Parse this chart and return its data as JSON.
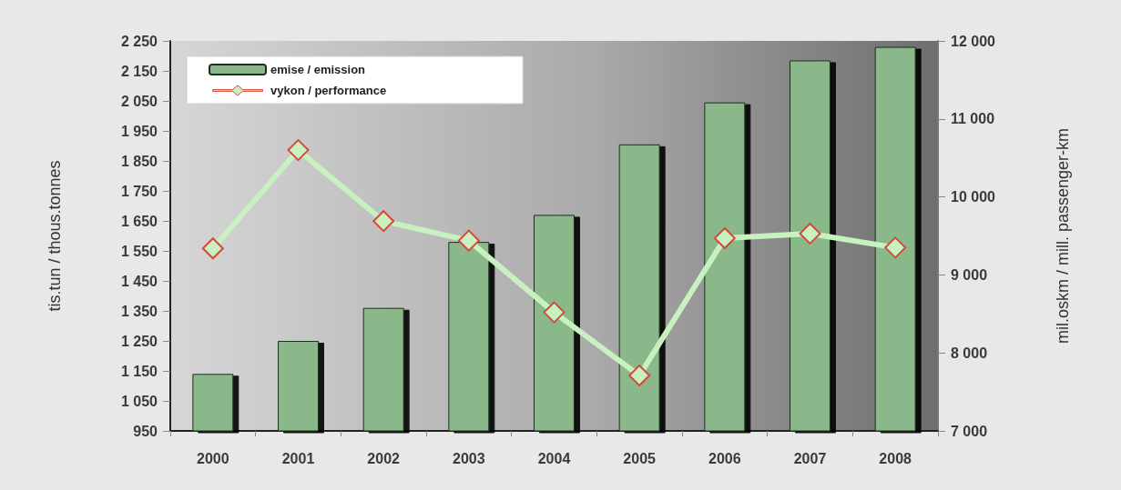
{
  "chart_data": {
    "type": "bar",
    "ylabel": "tis.tun / thous.tonnes",
    "y2label": "mil.oskm / mill. passenger-km",
    "categories": [
      "2000",
      "2001",
      "2002",
      "2003",
      "2004",
      "2005",
      "2006",
      "2007",
      "2008"
    ],
    "series": [
      {
        "name": "emise / emission",
        "color": "#8ab88a",
        "values": [
          1140,
          1250,
          1360,
          1580,
          1670,
          1905,
          2045,
          2185,
          2230
        ]
      },
      {
        "name": "vykon / performance",
        "type": "line",
        "axis": "y2",
        "color": "#c8f0c0",
        "marker": "diamond",
        "values": [
          9340,
          10600,
          9690,
          9440,
          8520,
          7710,
          9470,
          9530,
          9350
        ]
      }
    ],
    "ylim": [
      950,
      2250
    ],
    "yticks": [
      950,
      {
        "value": 1050,
        "label": "1 050"
      },
      {
        "value": 1150,
        "label": "1 150"
      },
      {
        "value": 1250,
        "label": "1 250"
      },
      {
        "value": 1350,
        "label": "1 350"
      },
      {
        "value": 1450,
        "label": "1 450"
      },
      {
        "value": 1550,
        "label": "1 550"
      },
      {
        "value": 1650,
        "label": "1 650"
      },
      {
        "value": 1750,
        "label": "1 750"
      },
      {
        "value": 1850,
        "label": "1 850"
      },
      {
        "value": 1950,
        "label": "1 950"
      },
      {
        "value": 2050,
        "label": "2 050"
      },
      {
        "value": 2150,
        "label": "2 150"
      },
      {
        "value": 2250,
        "label": "2 250"
      }
    ],
    "y2lim": [
      7000,
      12000
    ],
    "y2ticks": [
      {
        "value": 7000,
        "label": "7 000"
      },
      {
        "value": 8000,
        "label": "8 000"
      },
      {
        "value": 9000,
        "label": "9 000"
      },
      {
        "value": 10000,
        "label": "10 000"
      },
      {
        "value": 11000,
        "label": "11 000"
      },
      {
        "value": 12000,
        "label": "12 000"
      }
    ],
    "legend": "top left",
    "grid": false
  }
}
